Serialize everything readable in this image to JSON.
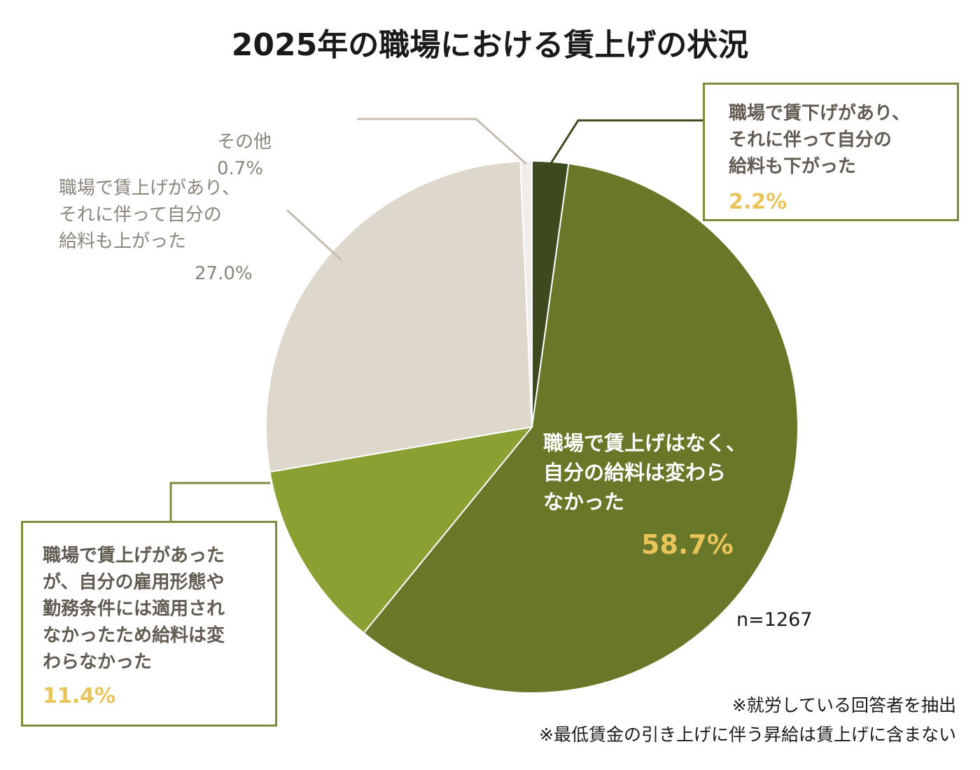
{
  "chart_data": {
    "type": "pie",
    "title": "2025年の職場における賃上げの状況",
    "n_label": "n=1267",
    "start_angle_deg": 0,
    "direction": "clockwise",
    "slices": [
      {
        "label": "職場で賃下げがあり、\nそれに伴って自分の\n給料も下がった",
        "pct_label": "2.2%",
        "value": 2.2,
        "color": "#3d4a1e"
      },
      {
        "label": "職場で賃上げはなく、\n自分の給料は変わら\nなかった",
        "pct_label": "58.7%",
        "value": 58.7,
        "color": "#687828"
      },
      {
        "label": "職場で賃上げがあった\nが、自分の雇用形態や\n勤務条件には適用され\nなかったため給料は変\nわらなかった",
        "pct_label": "11.4%",
        "value": 11.4,
        "color": "#8aa033"
      },
      {
        "label": "職場で賃上げがあり、\nそれに伴って自分の\n給料も上がった",
        "pct_label": "27.0%",
        "value": 27.0,
        "color": "#ded7cb"
      },
      {
        "label": "その他",
        "pct_label": "0.7%",
        "value": 0.7,
        "color": "#f0eeea"
      }
    ],
    "notes": [
      "※就労している回答者を抽出",
      "※最低賃金の引き上げに伴う昇給は賃上げに含まない"
    ]
  }
}
